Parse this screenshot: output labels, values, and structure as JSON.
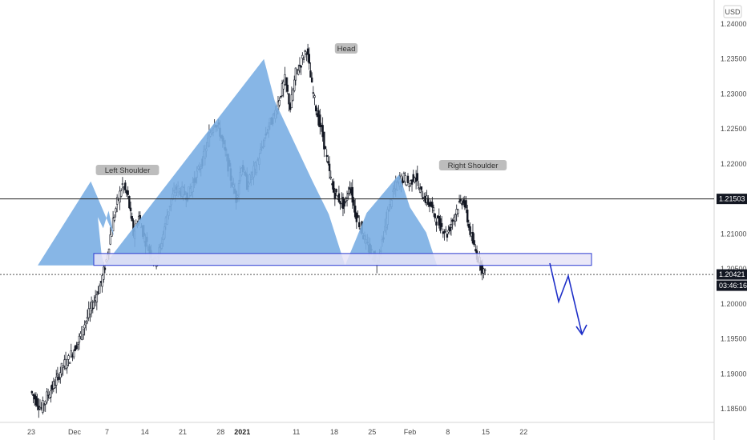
{
  "chart_data": {
    "type": "candlestick",
    "currency": "USD",
    "y_ticks": [
      "1.24000",
      "1.23500",
      "1.23000",
      "1.22500",
      "1.22000",
      "1.21500",
      "1.21000",
      "1.20500",
      "1.20000",
      "1.19500",
      "1.19000",
      "1.18500"
    ],
    "y_tick_values": [
      1.24,
      1.235,
      1.23,
      1.225,
      1.22,
      1.215,
      1.21,
      1.205,
      1.2,
      1.195,
      1.19,
      1.185
    ],
    "ylim": [
      1.1825,
      1.2425
    ],
    "x_ticks": [
      "23",
      "Dec",
      "7",
      "14",
      "21",
      "28",
      "2021",
      "11",
      "18",
      "25",
      "Feb",
      "8",
      "15",
      "22"
    ],
    "x_ticks_bold": [
      "2021"
    ],
    "x_tick_day_index": [
      0,
      8,
      14,
      21,
      28,
      35,
      39,
      49,
      56,
      63,
      70,
      77,
      84,
      91
    ],
    "ohlc_closes": [
      1.1875,
      1.1862,
      1.185,
      1.1868,
      1.188,
      1.1895,
      1.1912,
      1.192,
      1.1935,
      1.195,
      1.1972,
      1.199,
      1.201,
      1.203,
      1.2062,
      1.211,
      1.2145,
      1.217,
      1.2152,
      1.21,
      1.2125,
      1.2095,
      1.2075,
      1.206,
      1.208,
      1.212,
      1.215,
      1.2165,
      1.216,
      1.2155,
      1.2172,
      1.219,
      1.221,
      1.224,
      1.2262,
      1.2245,
      1.2215,
      1.218,
      1.215,
      1.22,
      1.217,
      1.2185,
      1.2205,
      1.223,
      1.2255,
      1.2268,
      1.2295,
      1.232,
      1.228,
      1.233,
      1.2345,
      1.2365,
      1.231,
      1.227,
      1.224,
      1.2195,
      1.216,
      1.215,
      1.214,
      1.217,
      1.213,
      1.211,
      1.2085,
      1.2072,
      1.206,
      1.209,
      1.213,
      1.216,
      1.2175,
      1.218,
      1.217,
      1.2185,
      1.216,
      1.215,
      1.214,
      1.212,
      1.211,
      1.21,
      1.212,
      1.214,
      1.215,
      1.211,
      1.208,
      1.206,
      1.2042
    ],
    "horizontal_line": {
      "value": 1.215,
      "label": "1.21503"
    },
    "current_price": {
      "value": 1.2042,
      "label": "1.20421",
      "countdown": "03:46:16"
    },
    "support_zone": {
      "low": 1.2055,
      "high": 1.2072
    },
    "pattern_labels": [
      "Left Shoulder",
      "Head",
      "Right Shoulder"
    ],
    "pattern_points": [
      {
        "label": "Left Shoulder",
        "day": 11,
        "price": 1.2175
      },
      {
        "label": "Head",
        "day": 43,
        "price": 1.235
      },
      {
        "label": "Right Shoulder",
        "day": 68,
        "price": 1.2185
      }
    ],
    "projection": [
      {
        "day": 80,
        "price": 1.2057
      },
      {
        "day": 82,
        "price": 1.2005
      },
      {
        "day": 85,
        "price": 1.204
      },
      {
        "day": 88,
        "price": 1.1958
      }
    ],
    "colors": {
      "pattern_fill": "#7aaee3",
      "zone_fill": "#e6e4f7",
      "zone_stroke": "#2b3bd1",
      "projection": "#1e2fc8",
      "candle": "#131722",
      "price_tag": "#131722",
      "label_bg": "#bdbdbd"
    }
  }
}
